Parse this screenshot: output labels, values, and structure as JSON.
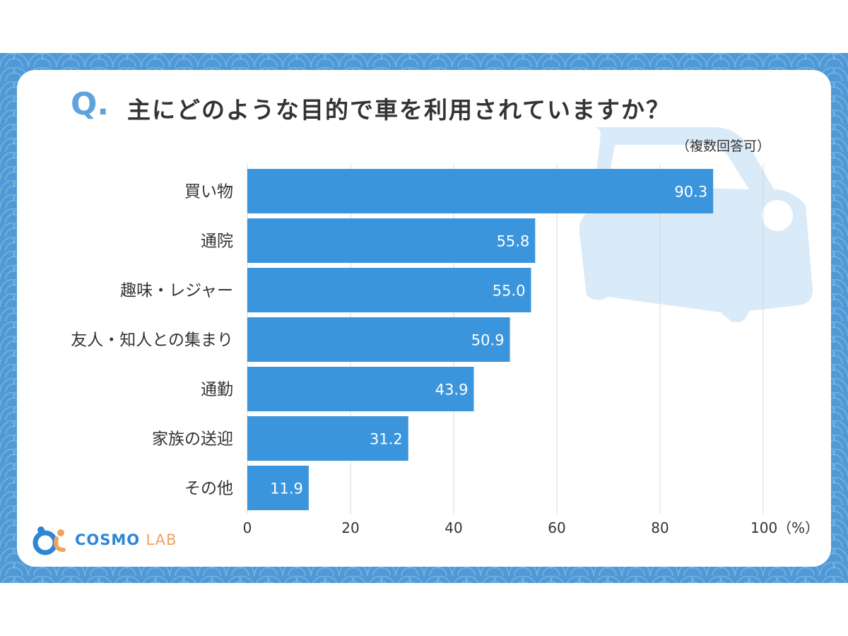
{
  "question_mark": "Q.",
  "logo": {
    "brand": "COSMO",
    "suffix": "LAB"
  },
  "colors": {
    "bar": "#3a95dc",
    "frame": "#4f9ad6",
    "car": "#d9eaf8",
    "grid": "#d8d8d8",
    "text": "#333333"
  },
  "chart_data": {
    "type": "bar",
    "orientation": "horizontal",
    "title": "主にどのような目的で車を利用されていますか？",
    "subtitle": "（複数回答可）",
    "categories": [
      "買い物",
      "通院",
      "趣味・レジャー",
      "友人・知人との集まり",
      "通勤",
      "家族の送迎",
      "その他"
    ],
    "values": [
      90.3,
      55.8,
      55.0,
      50.9,
      43.9,
      31.2,
      11.9
    ],
    "value_labels": [
      "90.3",
      "55.8",
      "55.0",
      "50.9",
      "43.9",
      "31.2",
      "11.9"
    ],
    "xlim": [
      0,
      100
    ],
    "xticks": [
      0,
      20,
      40,
      60,
      80,
      100
    ],
    "xtick_labels": [
      "0",
      "20",
      "40",
      "60",
      "80",
      "100（%）"
    ],
    "grid": true
  }
}
